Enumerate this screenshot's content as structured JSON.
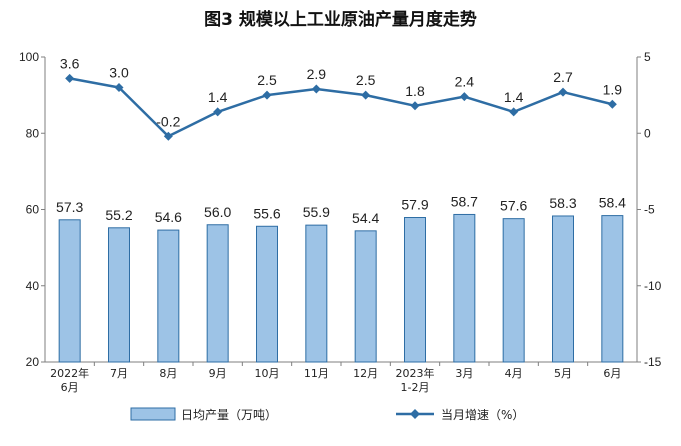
{
  "chart_data": {
    "type": "bar",
    "title": "图3  规模以上工业原油产量月度走势",
    "categories": [
      [
        "2022年",
        "6月"
      ],
      [
        "7月"
      ],
      [
        "8月"
      ],
      [
        "9月"
      ],
      [
        "10月"
      ],
      [
        "11月"
      ],
      [
        "12月"
      ],
      [
        "2023年",
        "1-2月"
      ],
      [
        "3月"
      ],
      [
        "4月"
      ],
      [
        "5月"
      ],
      [
        "6月"
      ]
    ],
    "series": [
      {
        "name": "日均产量（万吨）",
        "type": "bar",
        "axis": "left",
        "values": [
          57.3,
          55.2,
          54.6,
          56.0,
          55.6,
          55.9,
          54.4,
          57.9,
          58.7,
          57.6,
          58.3,
          58.4
        ],
        "labels": [
          "57.3",
          "55.2",
          "54.6",
          "56.0",
          "55.6",
          "55.9",
          "54.4",
          "57.9",
          "58.7",
          "57.6",
          "58.3",
          "58.4"
        ]
      },
      {
        "name": "当月增速（%）",
        "type": "line",
        "axis": "right",
        "values": [
          3.6,
          3.0,
          -0.2,
          1.4,
          2.5,
          2.9,
          2.5,
          1.8,
          2.4,
          1.4,
          2.7,
          1.9
        ],
        "labels": [
          "3.6",
          "3.0",
          "-0.2",
          "1.4",
          "2.5",
          "2.9",
          "2.5",
          "1.8",
          "2.4",
          "1.4",
          "2.7",
          "1.9"
        ]
      }
    ],
    "y_left": {
      "range": [
        20,
        100
      ],
      "ticks": [
        "20",
        "40",
        "60",
        "80",
        "100"
      ]
    },
    "y_right": {
      "range": [
        -15,
        5
      ],
      "ticks": [
        "-15",
        "-10",
        "-5",
        "0",
        "5"
      ]
    },
    "grid": false,
    "legend_position": "bottom",
    "colors": {
      "bar_fill": "#9dc3e6",
      "bar_stroke": "#2e6da4",
      "line": "#2e6da4"
    }
  }
}
